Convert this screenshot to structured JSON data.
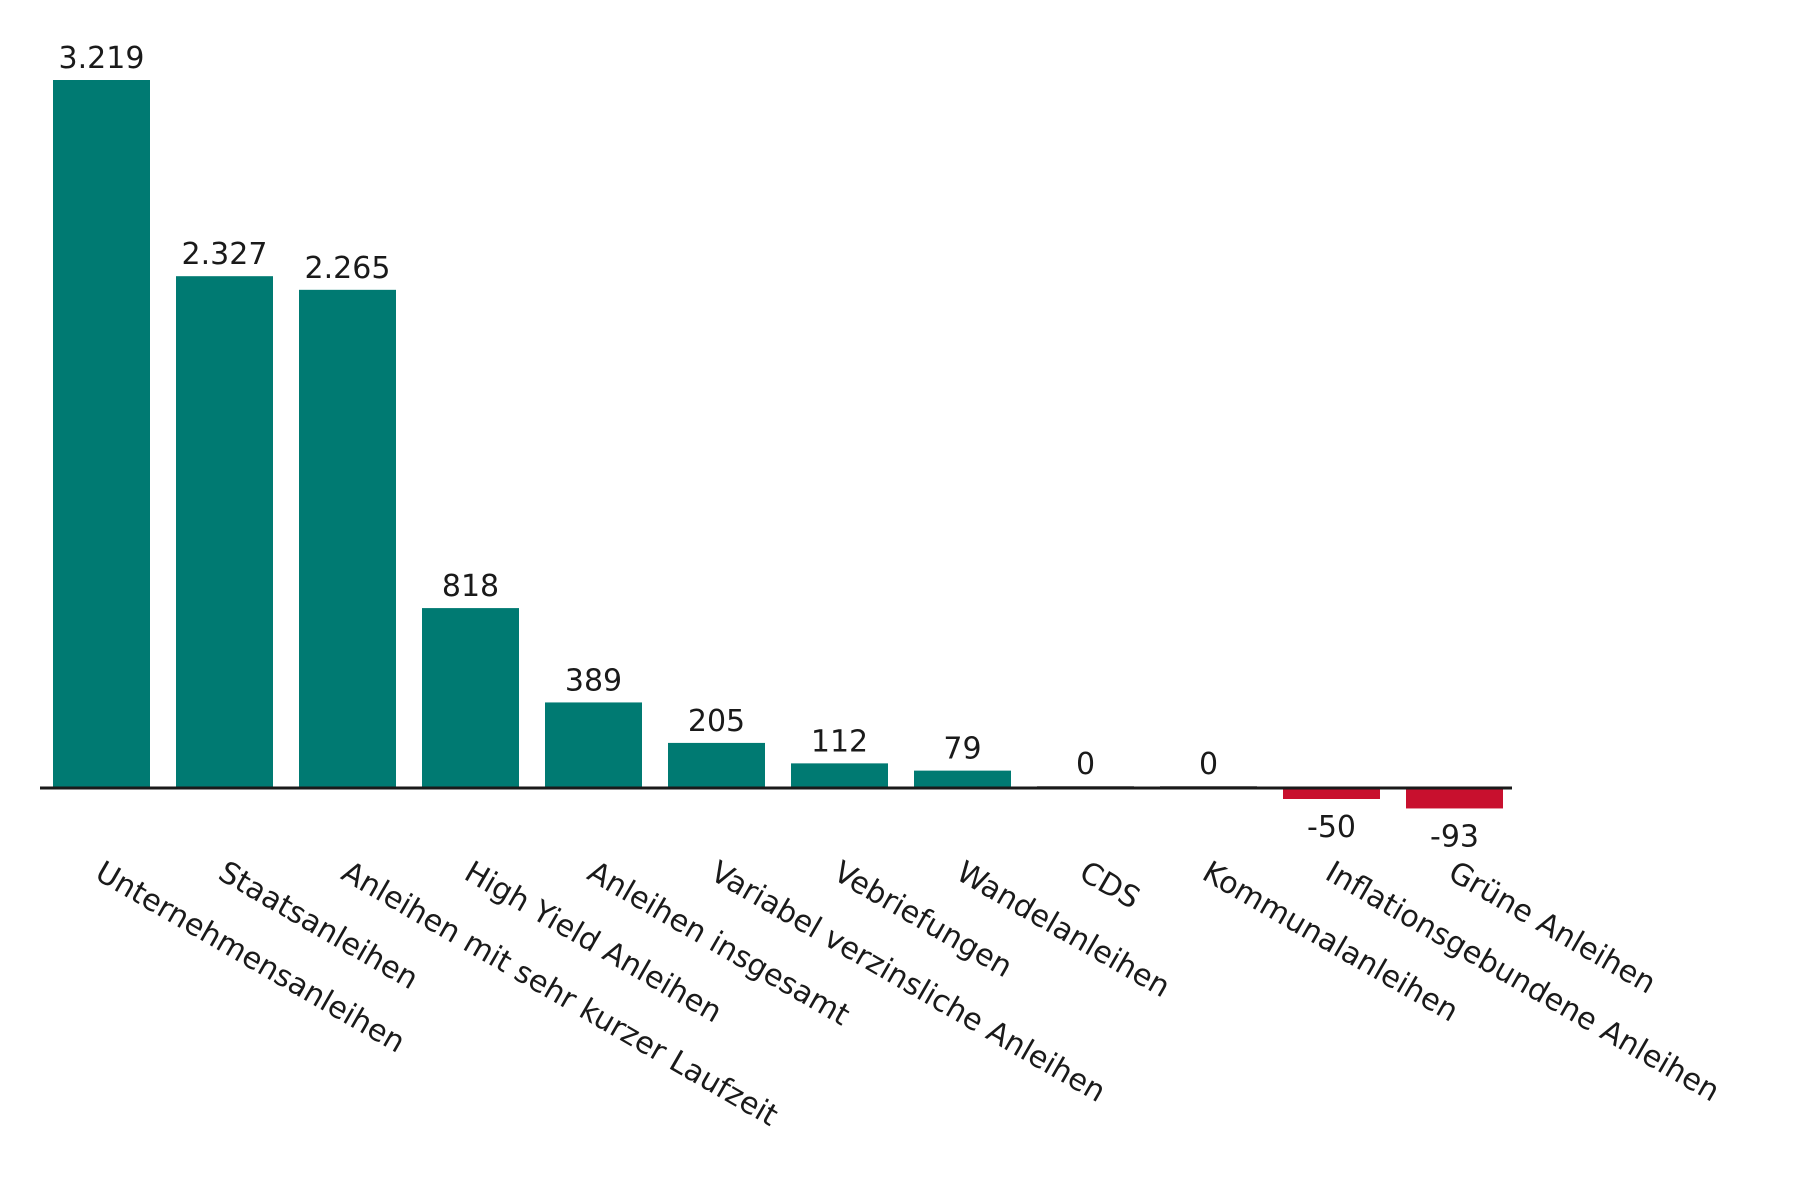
{
  "chart_data": {
    "type": "bar",
    "title": "",
    "xlabel": "",
    "ylabel": "",
    "categories": [
      "Unternehmensanleihen",
      "Staatsanleihen",
      "Anleihen mit sehr kurzer Laufzeit",
      "High Yield Anleihen",
      "Anleihen insgesamt",
      "Variabel verzinsliche Anleihen",
      "Vebriefungen",
      "Wandelanleihen",
      "CDS",
      "Kommunalanleihen",
      "Inflationsgebundene Anleihen",
      "Grüne Anleihen"
    ],
    "values": [
      3219,
      2327,
      2265,
      818,
      389,
      205,
      112,
      79,
      0,
      0,
      -50,
      -93
    ],
    "value_labels": [
      "3.219",
      "2.327",
      "2.265",
      "818",
      "389",
      "205",
      "112",
      "79",
      "0",
      "0",
      "-50",
      "-93"
    ],
    "ylim": [
      -93,
      3219
    ],
    "grid": false,
    "legend": "none",
    "colors": {
      "positive": "#007a72",
      "negative": "#c8102e",
      "zero": "#9a9a9a",
      "axis": "#1a1a1a"
    }
  }
}
